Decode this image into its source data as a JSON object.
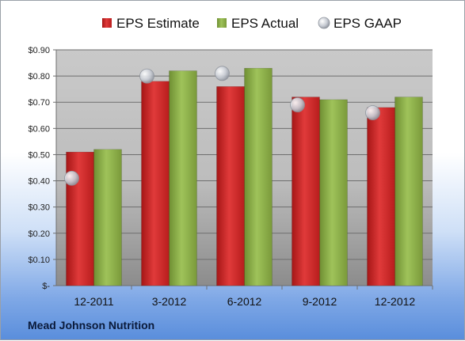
{
  "chart_data": {
    "type": "bar",
    "categories": [
      "12-2011",
      "3-2012",
      "6-2012",
      "9-2012",
      "12-2012"
    ],
    "series": [
      {
        "name": "EPS Estimate",
        "values": [
          0.51,
          0.78,
          0.76,
          0.72,
          0.68
        ],
        "color": "#d42b2b"
      },
      {
        "name": "EPS Actual",
        "values": [
          0.52,
          0.82,
          0.83,
          0.71,
          0.72
        ],
        "color": "#8fb24a"
      },
      {
        "name": "EPS GAAP",
        "kind": "marker",
        "values": [
          0.41,
          0.8,
          0.81,
          0.69,
          0.66
        ],
        "color": "#c8ccd4"
      }
    ],
    "ylim": [
      0,
      0.9
    ],
    "yticks": [
      "$-",
      "$0.10",
      "$0.20",
      "$0.30",
      "$0.40",
      "$0.50",
      "$0.60",
      "$0.70",
      "$0.80",
      "$0.90"
    ],
    "legend_position": "top",
    "grid": true
  },
  "footer": {
    "company": "Mead Johnson Nutrition"
  }
}
